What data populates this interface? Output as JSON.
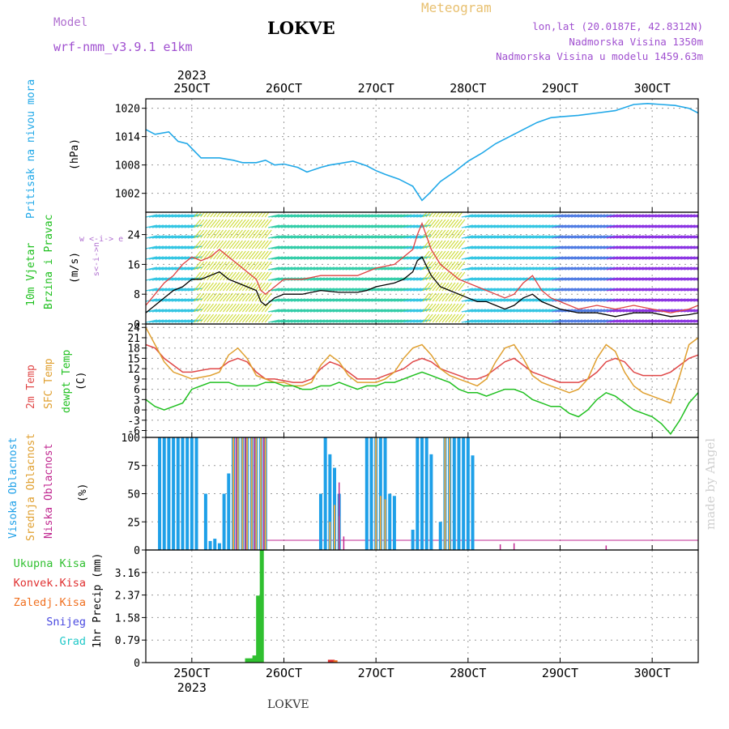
{
  "header": {
    "model_label": "Model",
    "model_value": "wrf-nmm_v3.9.1 e1km",
    "title": "LOKVE",
    "meteogram": "Meteogram",
    "lonlat": "lon,lat (20.0187E, 42.8312N)",
    "elevation": "Nadmorska Visina 1350m",
    "model_elevation": "Nadmorska Visina u modelu 1459.63m"
  },
  "footer": {
    "title": "LOKVE",
    "watermark": "made by Angel"
  },
  "colors": {
    "pressure": "#20a8e8",
    "wind_speed": "#000000",
    "wind_gust": "#e04040",
    "t2m": "#e04848",
    "sfc": "#e0a030",
    "dewpt": "#20c020",
    "high_cloud": "#1ea0e8",
    "mid_cloud": "#e8a848",
    "low_cloud": "#c02890",
    "total_precip": "#30c030",
    "conv_precip": "#e03030",
    "frz_precip": "#f07020",
    "snow": "#4848e0",
    "grad": "#20c8c8"
  },
  "chart_data": [
    {
      "type": "line",
      "title": "",
      "ylabel": "Pritisak na nivou mora",
      "unit": "(hPa)",
      "ylim": [
        998,
        1022
      ],
      "yticks": [
        1002,
        1008,
        1014,
        1020
      ],
      "xlim": [
        24.5,
        30.5
      ],
      "x_top_labels": [
        "25OCT",
        "26OCT",
        "27OCT",
        "28OCT",
        "29OCT",
        "30OCT"
      ],
      "x_top_year": "2023",
      "x": [
        24.5,
        24.6,
        24.75,
        24.85,
        24.95,
        25.1,
        25.3,
        25.45,
        25.55,
        25.7,
        25.8,
        25.9,
        26.0,
        26.15,
        26.25,
        26.4,
        26.5,
        26.6,
        26.75,
        26.9,
        27.0,
        27.1,
        27.25,
        27.4,
        27.5,
        27.58,
        27.7,
        27.85,
        28.0,
        28.15,
        28.3,
        28.45,
        28.6,
        28.75,
        28.9,
        29.0,
        29.2,
        29.4,
        29.6,
        29.8,
        29.95,
        30.1,
        30.25,
        30.4,
        30.5
      ],
      "series": [
        {
          "values": [
            1015.5,
            1014.5,
            1015,
            1013,
            1012.5,
            1009.5,
            1009.5,
            1009,
            1008.5,
            1008.5,
            1009,
            1008,
            1008.2,
            1007.5,
            1006.5,
            1007.5,
            1008,
            1008.3,
            1008.8,
            1007.8,
            1006.8,
            1006,
            1005,
            1003.5,
            1000.5,
            1002,
            1004.5,
            1006.5,
            1008.8,
            1010.5,
            1012.5,
            1014,
            1015.5,
            1017,
            1018,
            1018.2,
            1018.5,
            1019,
            1019.5,
            1020.8,
            1021,
            1020.8,
            1020.6,
            1020,
            1019
          ]
        }
      ]
    },
    {
      "type": "line",
      "title": "",
      "ylabel": "10m Vjetar Brzina i Pravac",
      "unit": "(m/s)",
      "compass": "w <-i-> e  n<-i->s",
      "ylim": [
        0,
        30
      ],
      "yticks": [
        0,
        8,
        16,
        24
      ],
      "x": [
        24.5,
        24.6,
        24.7,
        24.8,
        24.9,
        25.0,
        25.1,
        25.2,
        25.3,
        25.4,
        25.5,
        25.6,
        25.7,
        25.75,
        25.8,
        25.9,
        26.0,
        26.2,
        26.4,
        26.6,
        26.8,
        26.9,
        27.0,
        27.2,
        27.3,
        27.4,
        27.45,
        27.5,
        27.6,
        27.7,
        27.8,
        27.9,
        28.0,
        28.1,
        28.2,
        28.3,
        28.4,
        28.5,
        28.6,
        28.7,
        28.8,
        28.9,
        29.0,
        29.2,
        29.4,
        29.6,
        29.8,
        30.0,
        30.2,
        30.4,
        30.5
      ],
      "series": [
        {
          "name": "speed",
          "values": [
            3,
            5,
            7,
            9,
            10,
            12,
            12,
            13,
            14,
            12,
            11,
            10,
            9,
            6,
            5,
            7,
            8,
            8,
            9,
            8.5,
            8.5,
            9,
            10,
            11,
            12,
            14,
            17,
            18,
            13,
            10,
            9,
            8,
            7,
            6,
            6,
            5,
            4,
            5,
            7,
            8,
            6,
            5,
            4,
            3,
            3,
            2,
            3,
            3,
            2,
            2.5,
            3
          ]
        },
        {
          "name": "gust",
          "values": [
            5,
            8,
            11,
            13,
            16,
            18,
            17,
            18,
            20,
            18,
            16,
            14,
            12,
            9,
            8,
            10,
            12,
            12,
            13,
            13,
            13,
            14,
            15,
            16,
            18,
            20,
            24,
            27,
            20,
            16,
            14,
            12,
            11,
            10,
            9,
            8,
            7,
            8,
            11,
            13,
            9,
            7,
            6,
            4,
            5,
            4,
            5,
            4,
            3,
            4,
            5
          ]
        }
      ]
    },
    {
      "type": "line",
      "title": "",
      "ylabel": "2m Temp / SFC Temp / dewpt Temp",
      "unit": "(C)",
      "ylim": [
        -8,
        25
      ],
      "yticks": [
        -6,
        -3,
        0,
        3,
        6,
        9,
        12,
        15,
        18,
        21,
        24
      ],
      "x": [
        24.5,
        24.6,
        24.7,
        24.8,
        24.9,
        25.0,
        25.2,
        25.3,
        25.4,
        25.5,
        25.6,
        25.7,
        25.8,
        25.9,
        26.0,
        26.1,
        26.2,
        26.3,
        26.4,
        26.5,
        26.6,
        26.7,
        26.8,
        26.9,
        27.0,
        27.1,
        27.2,
        27.3,
        27.4,
        27.5,
        27.6,
        27.7,
        27.8,
        27.9,
        28.0,
        28.1,
        28.2,
        28.3,
        28.4,
        28.5,
        28.6,
        28.7,
        28.8,
        28.9,
        29.0,
        29.1,
        29.2,
        29.3,
        29.4,
        29.5,
        29.6,
        29.7,
        29.8,
        29.9,
        30.0,
        30.1,
        30.2,
        30.3,
        30.4,
        30.5
      ],
      "series": [
        {
          "name": "2m Temp",
          "values": [
            19,
            18,
            15,
            13,
            11,
            11,
            12,
            12,
            14,
            15,
            14,
            11,
            9,
            9,
            8.5,
            8,
            8,
            9,
            12,
            14,
            13,
            11,
            9,
            9,
            9,
            10,
            11,
            12,
            14,
            15,
            14,
            12,
            11,
            10,
            9,
            9,
            10,
            12,
            14,
            15,
            13,
            11,
            10,
            9,
            8,
            8,
            8,
            9,
            11,
            14,
            15,
            14,
            11,
            10,
            10,
            10,
            11,
            13,
            15,
            16
          ]
        },
        {
          "name": "SFC Temp",
          "values": [
            24,
            19,
            14,
            11,
            10,
            9,
            10,
            11,
            16,
            18,
            15,
            10,
            9,
            8,
            8,
            7,
            7,
            8,
            13,
            16,
            14,
            10,
            8,
            8,
            8,
            9,
            11,
            15,
            18,
            19,
            16,
            12,
            10,
            9,
            8,
            7,
            9,
            14,
            18,
            19,
            15,
            10,
            8,
            7,
            6,
            5,
            6,
            9,
            15,
            19,
            17,
            11,
            7,
            5,
            4,
            3,
            2,
            10,
            19,
            21
          ]
        },
        {
          "name": "dewpt Temp",
          "values": [
            3,
            1,
            0,
            1,
            2,
            6,
            8,
            8,
            8,
            7,
            7,
            7,
            8,
            8,
            7,
            7,
            6,
            6,
            7,
            7,
            8,
            7,
            6,
            7,
            7,
            8,
            8,
            9,
            10,
            11,
            10,
            9,
            8,
            6,
            5,
            5,
            4,
            5,
            6,
            6,
            5,
            3,
            2,
            1,
            1,
            -1,
            -2,
            0,
            3,
            5,
            4,
            2,
            0,
            -1,
            -2,
            -4,
            -7,
            -3,
            2,
            5
          ]
        }
      ]
    },
    {
      "type": "bar",
      "title": "",
      "ylabel": "Visoka Oblacnost / Srednja Oblacnost / Niska Oblacnost",
      "unit": "(%)",
      "ylim": [
        0,
        100
      ],
      "yticks": [
        0,
        25,
        50,
        75,
        100
      ],
      "series": [
        {
          "name": "Visoka Oblacnost",
          "x": [
            24.65,
            24.7,
            24.75,
            24.8,
            24.85,
            24.9,
            24.95,
            25.0,
            25.05,
            25.15,
            25.2,
            25.25,
            25.3,
            25.35,
            25.4,
            25.45,
            25.5,
            25.55,
            25.6,
            25.65,
            25.7,
            25.75,
            25.8,
            26.4,
            26.45,
            26.5,
            26.55,
            26.6,
            26.9,
            26.95,
            27.0,
            27.05,
            27.1,
            27.15,
            27.2,
            27.4,
            27.45,
            27.5,
            27.55,
            27.6,
            27.7,
            27.75,
            27.8,
            27.85,
            27.9,
            27.95,
            28.0,
            28.05
          ],
          "values": [
            100,
            100,
            100,
            100,
            100,
            100,
            100,
            100,
            100,
            50,
            8,
            10,
            6,
            50,
            68,
            100,
            100,
            100,
            100,
            100,
            100,
            100,
            100,
            50,
            100,
            85,
            73,
            50,
            100,
            100,
            100,
            100,
            100,
            50,
            48,
            18,
            100,
            100,
            100,
            85,
            25,
            100,
            100,
            100,
            100,
            100,
            100,
            84
          ]
        },
        {
          "name": "Srednja Oblacnost",
          "x": [
            25.45,
            25.5,
            25.55,
            25.6,
            25.65,
            25.7,
            25.75,
            25.8,
            26.5,
            26.55,
            26.6,
            27.0,
            27.05,
            27.1,
            27.75,
            27.8
          ],
          "values": [
            100,
            100,
            100,
            100,
            100,
            100,
            100,
            100,
            25,
            40,
            30,
            100,
            48,
            45,
            100,
            100
          ]
        },
        {
          "name": "Niska Oblacnost",
          "x": [
            25.48,
            25.58,
            25.68,
            25.78,
            26.6,
            26.65,
            28.35,
            28.5,
            29.5
          ],
          "values": [
            100,
            100,
            100,
            100,
            60,
            12,
            5,
            6,
            4
          ]
        }
      ]
    },
    {
      "type": "bar",
      "title": "",
      "ylabel": "1hr Precip",
      "unit": "(mm)",
      "legend": [
        "Ukupna Kisa",
        "Konvek.Kisa",
        "Zaledj.Kisa",
        "Snijeg",
        "Grad"
      ],
      "ylim": [
        0,
        3.95
      ],
      "yticks": [
        0,
        0.79,
        1.58,
        2.37,
        3.16
      ],
      "yticklabels": [
        "0",
        "0.79",
        "1.58",
        "2.37",
        "3.16"
      ],
      "x_bottom_labels": [
        "25OCT",
        "26OCT",
        "27OCT",
        "28OCT",
        "29OCT",
        "30OCT"
      ],
      "x_bottom_year": "2023",
      "series": [
        {
          "name": "Ukupna Kisa",
          "x": [
            25.6,
            25.64,
            25.68,
            25.72,
            25.76
          ],
          "values": [
            0.15,
            0.15,
            0.25,
            2.35,
            3.95
          ]
        },
        {
          "name": "Konvek.Kisa",
          "x": [
            26.5,
            26.53
          ],
          "values": [
            0.1,
            0.1
          ]
        },
        {
          "name": "Zaledj.Kisa",
          "x": [
            26.56
          ],
          "values": [
            0.08
          ]
        }
      ]
    }
  ]
}
